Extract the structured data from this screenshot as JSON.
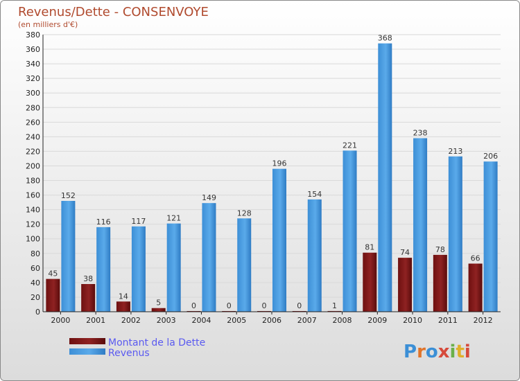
{
  "chart_data": {
    "type": "bar",
    "title": "Revenus/Dette - CONSENVOYE",
    "subtitle": "(en milliers d'€)",
    "categories": [
      "2000",
      "2001",
      "2002",
      "2003",
      "2004",
      "2005",
      "2006",
      "2007",
      "2008",
      "2009",
      "2010",
      "2011",
      "2012"
    ],
    "series": [
      {
        "name": "Montant de la Dette",
        "color": "#8b1a1a",
        "values": [
          45,
          38,
          14,
          5,
          0,
          0,
          0,
          0,
          1,
          81,
          74,
          78,
          66
        ]
      },
      {
        "name": "Revenus",
        "color": "#4a9fe3",
        "values": [
          152,
          116,
          117,
          121,
          149,
          128,
          196,
          154,
          221,
          368,
          238,
          213,
          206
        ]
      }
    ],
    "ylim": [
      0,
      380
    ],
    "ytick_step": 20,
    "grid": true,
    "legend_position": "bottom-left"
  },
  "colors": {
    "title": "#b04a2e",
    "legend_text": "#5a5af0",
    "grid": "#d9d9d9",
    "background_top": "#ffffff",
    "background_bottom": "#dcdcdc"
  },
  "logo": {
    "text": "Proxiti",
    "letter_colors": [
      "#3b8fd6",
      "#e0742a",
      "#3b8fd6",
      "#d64a3b",
      "#6ab04a",
      "#e0b02a",
      "#d64a3b"
    ]
  }
}
